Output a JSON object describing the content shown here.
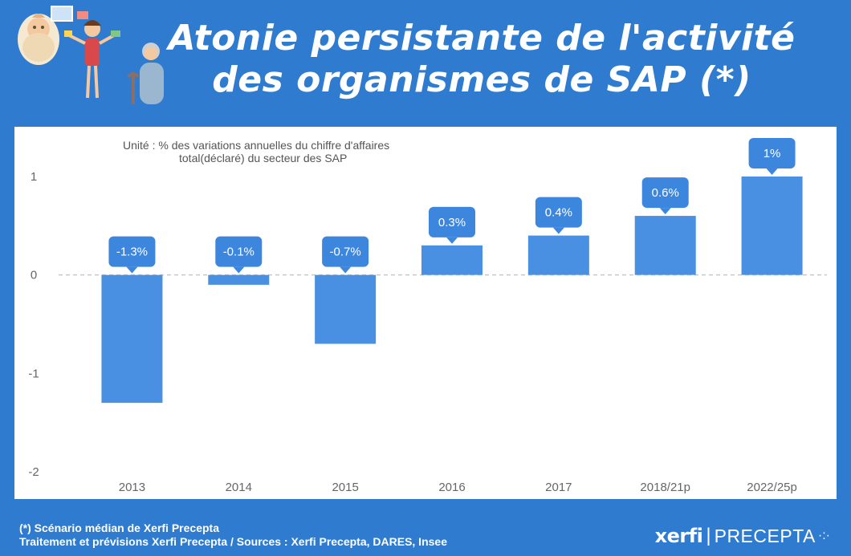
{
  "header": {
    "title_line1": "Atonie persistante de l'activité",
    "title_line2": "des organismes de SAP (*)"
  },
  "chart_data": {
    "type": "bar",
    "unit_note_line1": "Unité : % des variations annuelles du chiffre d'affaires",
    "unit_note_line2": "total(déclaré) du secteur des SAP",
    "categories": [
      "2013",
      "2014",
      "2015",
      "2016",
      "2017",
      "2018/21p",
      "2022/25p"
    ],
    "values": [
      -1.3,
      -0.1,
      -0.7,
      0.3,
      0.4,
      0.6,
      1.0
    ],
    "data_labels": [
      "-1.3%",
      "-0.1%",
      "-0.7%",
      "0.3%",
      "0.4%",
      "0.6%",
      "1%"
    ],
    "ylim": [
      -2,
      1
    ],
    "yticks": [
      1,
      0,
      -1,
      -2
    ],
    "ytick_labels": [
      "1",
      "0",
      "-1",
      "-2"
    ],
    "zero_line": "dashed",
    "grid": false,
    "colors": {
      "bar": "#4a90e2",
      "label_bubble": "#3d86de",
      "background": "#2e7bcf"
    }
  },
  "footer": {
    "note_line1": "(*) Scénario médian de Xerfi Precepta",
    "note_line2": "Traitement et prévisions Xerfi Precepta / Sources : Xerfi Precepta, DARES, Insee"
  },
  "logo": {
    "brand": "xerfi",
    "separator": "|",
    "product": "PRECEPTA",
    "glyph": "·:·"
  },
  "illustration": {
    "icons": [
      "baby-icon",
      "working-mother-icon",
      "elderly-person-icon"
    ]
  }
}
